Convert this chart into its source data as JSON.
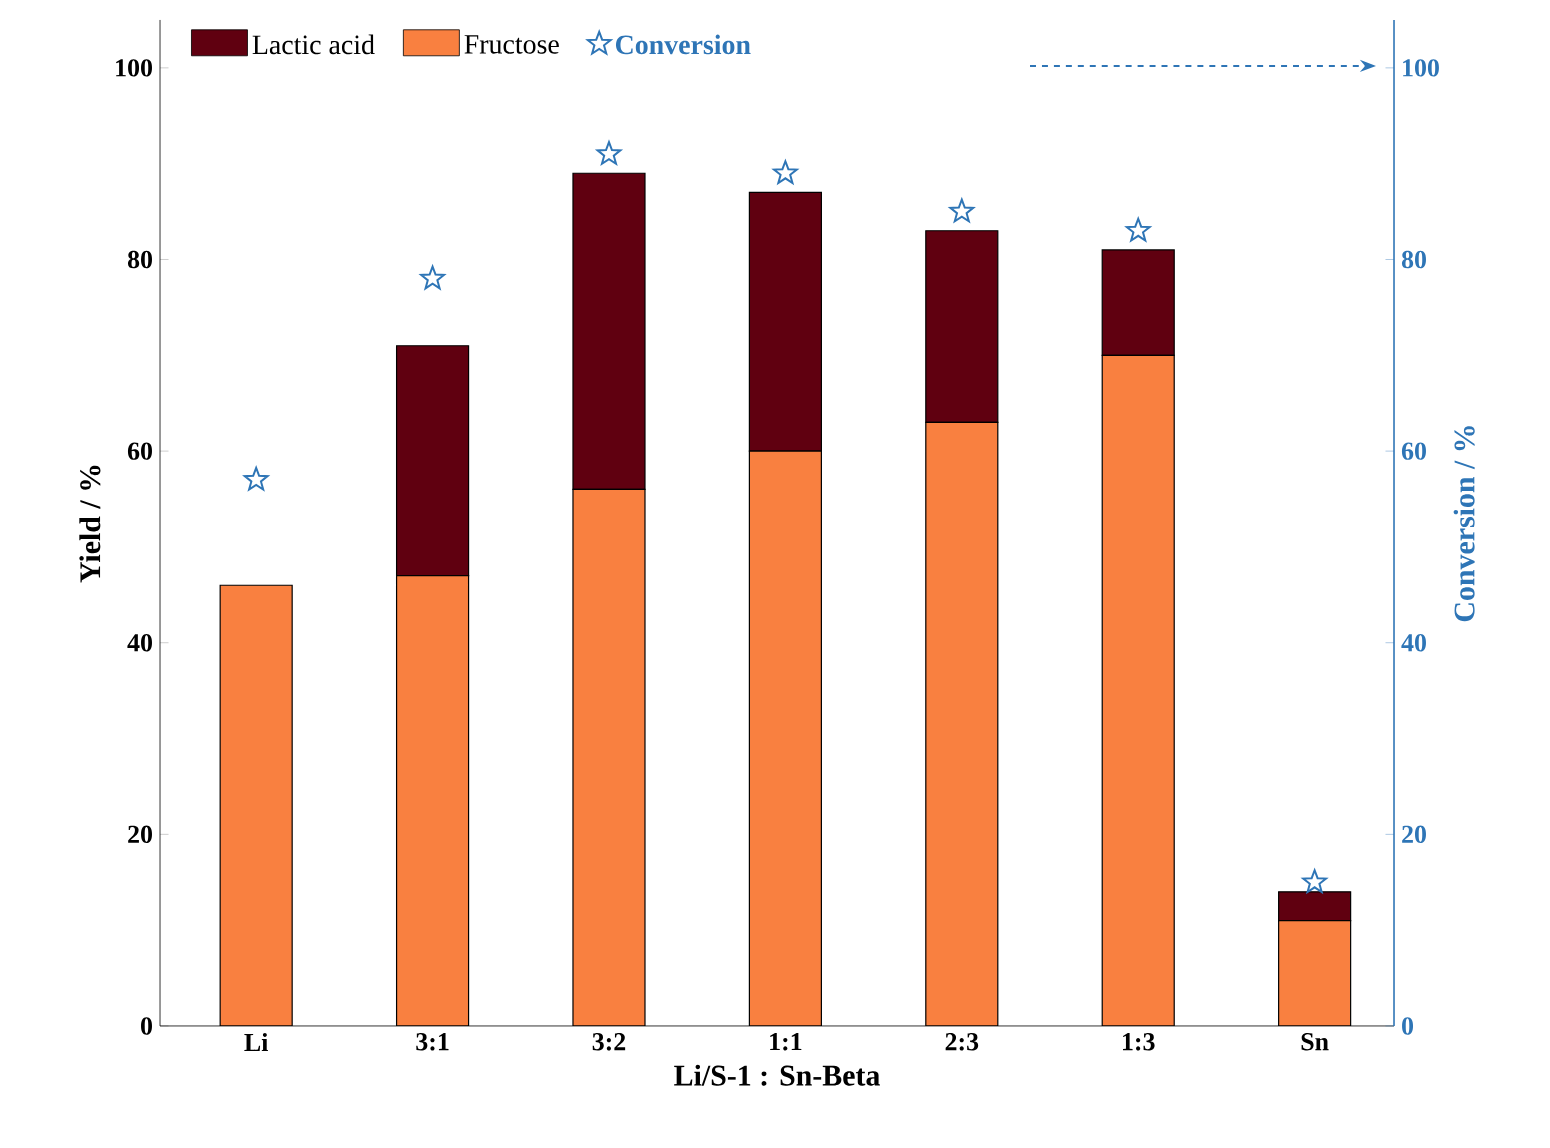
{
  "chart_data": {
    "type": "bar",
    "stacked": true,
    "xlabel": "Li/S-1 : Sn-Beta",
    "ylabel": "Yield / %",
    "y2label": "Conversion / %",
    "categories": [
      "Li",
      "3:1",
      "3:2",
      "1:1",
      "2:3",
      "1:3",
      "Sn"
    ],
    "series": [
      {
        "name": "Fructose",
        "color": "#f98040",
        "values": [
          46,
          47,
          56,
          60,
          63,
          70,
          11
        ]
      },
      {
        "name": "Lactic acid",
        "color": "#600010",
        "values": [
          0,
          24,
          33,
          27,
          20,
          11,
          3
        ]
      },
      {
        "name": "Conversion",
        "type": "scatter",
        "axis": "y2",
        "color": "#2e75b6",
        "values": [
          57,
          78,
          91,
          89,
          85,
          83,
          15
        ]
      }
    ],
    "marker": "star",
    "legend": "top left",
    "ylim": [
      0,
      105
    ],
    "yticks": [
      0,
      20,
      40,
      60,
      80,
      100
    ],
    "y2lim": [
      0,
      105
    ],
    "y2ticks": [
      0,
      20,
      40,
      60,
      80,
      100
    ]
  }
}
